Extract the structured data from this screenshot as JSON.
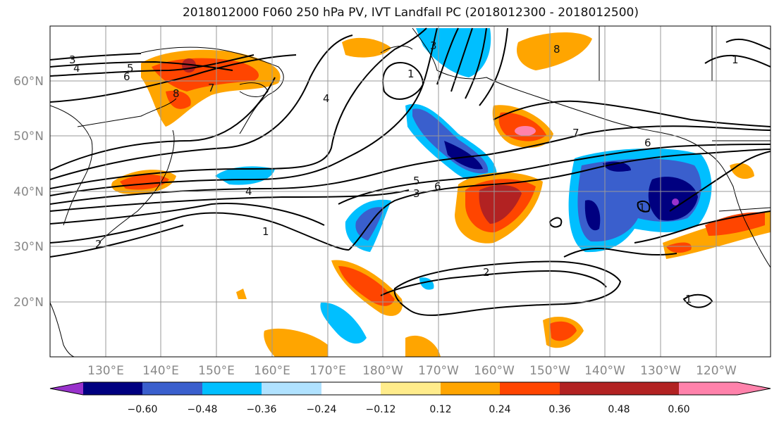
{
  "title": "2018012000 F060 250 hPa PV, IVT Landfall PC (2018012300 - 2018012500)",
  "map": {
    "lon_ticks": [
      "130°E",
      "140°E",
      "150°E",
      "160°E",
      "170°E",
      "180°W",
      "170°W",
      "160°W",
      "150°W",
      "140°W",
      "130°W",
      "120°W"
    ],
    "lat_ticks": [
      "60°N",
      "50°N",
      "40°N",
      "30°N",
      "20°N"
    ],
    "contour_labels": [
      "3",
      "4",
      "5",
      "6",
      "8",
      "7",
      "4",
      "1",
      "3",
      "8",
      "1",
      "7",
      "6",
      "5",
      "6",
      "3",
      "4",
      "1",
      "2",
      "2",
      "1",
      "1"
    ]
  },
  "colorbar": {
    "colors": [
      "#9932cc",
      "#000080",
      "#3a5fcd",
      "#00bfff",
      "#b0e2ff",
      "#ffffff",
      "#ffec8b",
      "#ffa500",
      "#ff4500",
      "#b22222",
      "#ff82ab"
    ],
    "tick_labels": [
      "−0.60",
      "−0.48",
      "−0.36",
      "−0.24",
      "−0.12",
      "0.12",
      "0.24",
      "0.36",
      "0.48",
      "0.60"
    ]
  }
}
